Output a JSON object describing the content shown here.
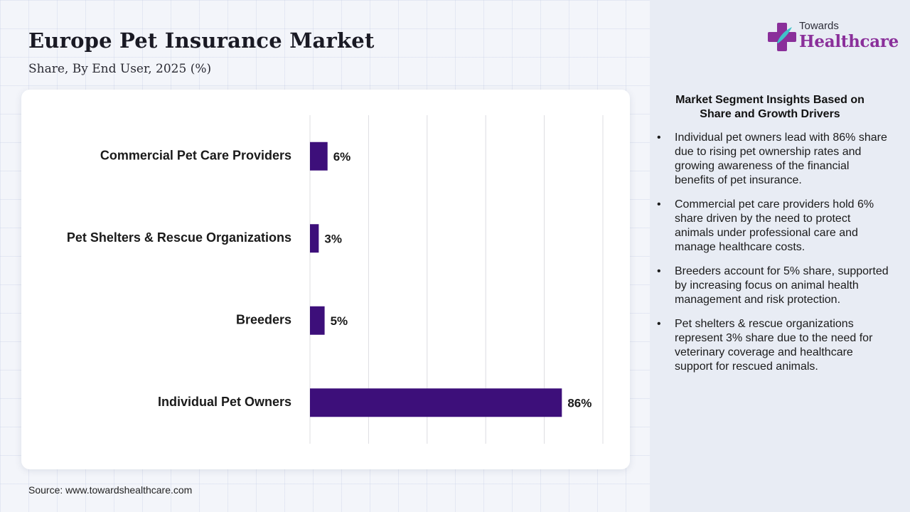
{
  "title": "Europe Pet Insurance Market",
  "subtitle": "Share, By End User, 2025 (%)",
  "source": "Source: www.towardshealthcare.com",
  "logo": {
    "small_text": "Towards",
    "big_text": "Healthcare",
    "icon": "medical-cross-logo-icon"
  },
  "colors": {
    "bar": "#3d0f7a",
    "logo_accent": "#8a2f9a",
    "logo_teal": "#3fc3c9"
  },
  "insights": {
    "title": "Market Segment Insights Based on Share and Growth Drivers",
    "items": [
      "Individual pet owners lead with 86% share due to rising pet ownership rates and growing awareness of the financial benefits of pet insurance.",
      "Commercial pet care providers hold 6% share driven by the need to protect animals under professional care and manage healthcare costs.",
      "Breeders account for 5% share, supported by increasing focus on animal health management and risk protection.",
      "Pet shelters & rescue organizations represent 3% share due to the need for veterinary coverage and healthcare support for rescued animals."
    ]
  },
  "chart_data": {
    "type": "bar",
    "orientation": "horizontal",
    "title": "Europe Pet Insurance Market",
    "subtitle": "Share, By End User, 2025 (%)",
    "categories": [
      "Commercial Pet Care Providers",
      "Pet Shelters & Rescue Organizations",
      "Breeders",
      "Individual Pet Owners"
    ],
    "values": [
      6,
      3,
      5,
      86
    ],
    "data_labels": [
      "6%",
      "3%",
      "5%",
      "86%"
    ],
    "unit": "%",
    "xlim": [
      0,
      100
    ],
    "grid": true,
    "legend": "none"
  }
}
